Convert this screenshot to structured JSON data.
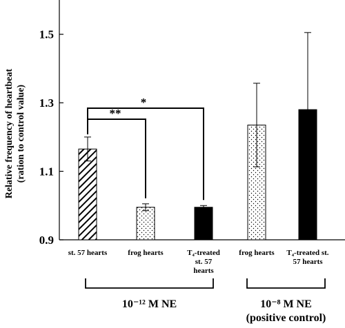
{
  "chart_data": {
    "type": "bar",
    "ylabel": "Relative frequency of heartbeat",
    "ylabel_sub": "(ration to control value)",
    "ylim": [
      0.9,
      1.6
    ],
    "yticks": [
      "0.9",
      "1.1",
      "1.3",
      "1.5"
    ],
    "grid": false,
    "bars": [
      {
        "category": [
          "st. 57 hearts"
        ],
        "value": 1.165,
        "error": 0.035,
        "fill": "hatch"
      },
      {
        "category": [
          "frog hearts"
        ],
        "value": 0.995,
        "error": 0.01,
        "fill": "dots"
      },
      {
        "category": [
          "T₄-treated",
          "st. 57",
          "hearts"
        ],
        "value": 0.995,
        "error": 0.005,
        "fill": "solid"
      },
      {
        "category": [
          "frog hearts"
        ],
        "value": 1.235,
        "error": 0.122,
        "fill": "dots"
      },
      {
        "category": [
          "T₄-treated st.",
          "57 hearts"
        ],
        "value": 1.28,
        "error": 0.225,
        "fill": "solid"
      }
    ],
    "annotations": [
      {
        "text": "**",
        "from_bar": 0,
        "to_bar": 1
      },
      {
        "text": "*",
        "from_bar": 0,
        "to_bar": 2
      }
    ],
    "groups": [
      {
        "label_lines": [
          "10⁻¹² M NE"
        ],
        "bars": [
          0,
          2
        ]
      },
      {
        "label_lines": [
          "10⁻⁸ M NE",
          "(positive control)"
        ],
        "bars": [
          3,
          4
        ]
      }
    ],
    "colors": {
      "bar_solid": "#000000",
      "bar_outline": "#000000",
      "background": "#ffffff"
    }
  }
}
